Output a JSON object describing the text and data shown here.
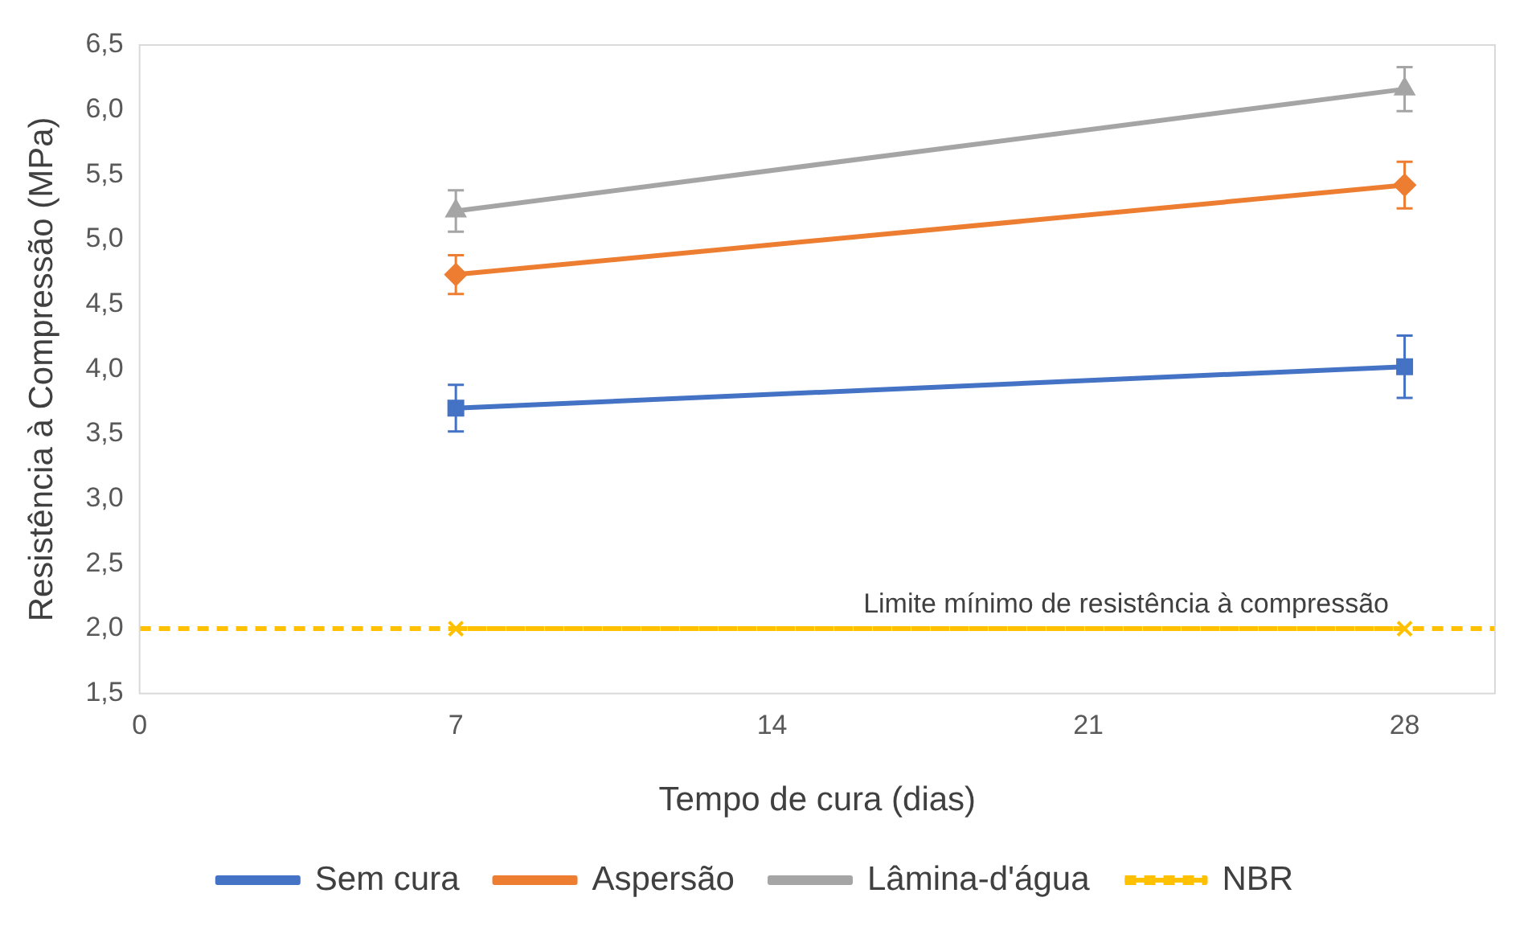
{
  "chart_data": {
    "type": "line",
    "xlabel": "Tempo de cura (dias)",
    "ylabel": "Resistência à Compressão (MPa)",
    "x": [
      7,
      28
    ],
    "xlim": [
      0,
      30
    ],
    "xticks": [
      0,
      7,
      14,
      21,
      28
    ],
    "ylim": [
      1.5,
      6.5
    ],
    "yticks": [
      {
        "value": 1.5,
        "label": "1,5"
      },
      {
        "value": 2,
        "label": "2,0"
      },
      {
        "value": 2.5,
        "label": "2,5"
      },
      {
        "value": 3,
        "label": "3,0"
      },
      {
        "value": 3.5,
        "label": "3,5"
      },
      {
        "value": 4,
        "label": "4,0"
      },
      {
        "value": 4.5,
        "label": "4,5"
      },
      {
        "value": 5,
        "label": "5,0"
      },
      {
        "value": 5.5,
        "label": "5,5"
      },
      {
        "value": 6,
        "label": "6,0"
      },
      {
        "value": 6.5,
        "label": "6,5"
      }
    ],
    "grid": false,
    "legend": "bottom",
    "line_style": "solid",
    "series": [
      {
        "name": "Sem cura",
        "color": "#4472c4",
        "marker": "square",
        "values": [
          3.7,
          4.02
        ],
        "errors": [
          0.18,
          0.24
        ]
      },
      {
        "name": "Aspersão",
        "color": "#ed7d31",
        "marker": "diamond",
        "values": [
          4.73,
          5.42
        ],
        "errors": [
          0.15,
          0.18
        ]
      },
      {
        "name": "Lâmina-d'água",
        "color": "#a5a5a5",
        "marker": "triangle",
        "values": [
          5.22,
          6.16
        ],
        "errors": [
          0.16,
          0.17
        ]
      },
      {
        "name": "NBR",
        "color": "#ffc000",
        "marker": "cross",
        "line_style": "dashed",
        "values": [
          2,
          2
        ]
      }
    ],
    "ref_lines": [
      {
        "axis": "y",
        "value": 2,
        "label": "Limite mínimo de resistência à compressão",
        "color": "#ffc000",
        "line_style": "dashed"
      }
    ]
  }
}
